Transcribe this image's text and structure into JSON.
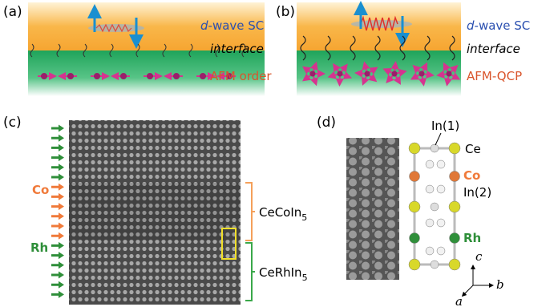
{
  "panels": {
    "a": {
      "label": "(a)",
      "sc": {
        "italic": "d",
        "rest": "-wave SC"
      },
      "interface": "interface",
      "bottom": "AFM order"
    },
    "b": {
      "label": "(b)",
      "sc": {
        "italic": "d",
        "rest": "-wave SC"
      },
      "interface": "interface",
      "bottom": "AFM-QCP"
    },
    "c": {
      "label": "(c)",
      "co": "Co",
      "rh": "Rh",
      "top_layer": {
        "base": "CeCoIn",
        "sub": "5"
      },
      "bottom_layer": {
        "base": "CeRhIn",
        "sub": "5"
      }
    },
    "d": {
      "label": "(d)",
      "in1": "In(1)",
      "ce": "Ce",
      "co": "Co",
      "in2": "In(2)",
      "rh": "Rh",
      "axis_c": "c",
      "axis_b": "b",
      "axis_a": "a"
    }
  }
}
